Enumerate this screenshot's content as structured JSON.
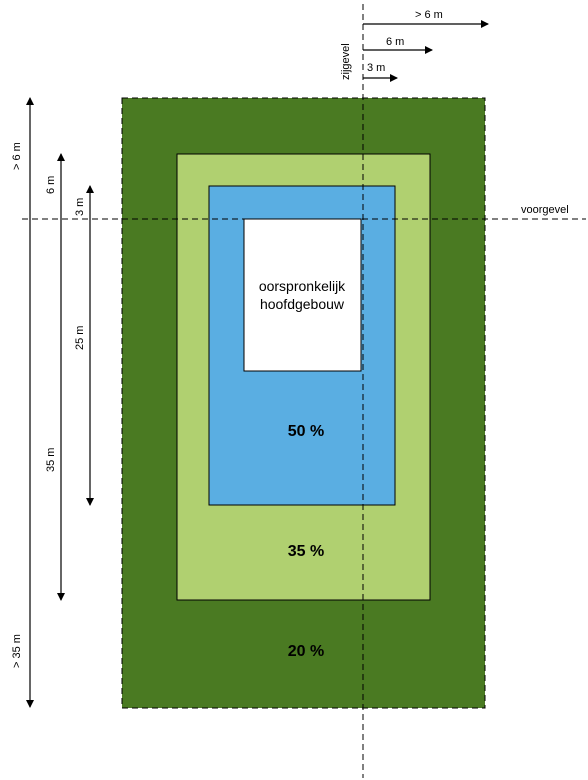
{
  "colors": {
    "zone_outer": "#4a7a22",
    "zone_middle": "#b0d070",
    "zone_inner": "#5aaee2",
    "core": "#ffffff"
  },
  "zones": {
    "outer_pct": "20 %",
    "middle_pct": "35 %",
    "inner_pct": "50 %"
  },
  "core": {
    "line1": "oorspronkelijk",
    "line2": "hoofdgebouw"
  },
  "axes": {
    "voorgevel": "voorgevel",
    "zijgevel": "zijgevel"
  },
  "horizontal_dims": {
    "gt6": "> 6 m",
    "six": "6 m",
    "three": "3 m"
  },
  "vertical_dims": {
    "gt6": "> 6 m",
    "six": "6 m",
    "three": "3 m",
    "twentyfive": "25 m",
    "thirtyfive": "35 m",
    "gt35": "> 35 m"
  }
}
